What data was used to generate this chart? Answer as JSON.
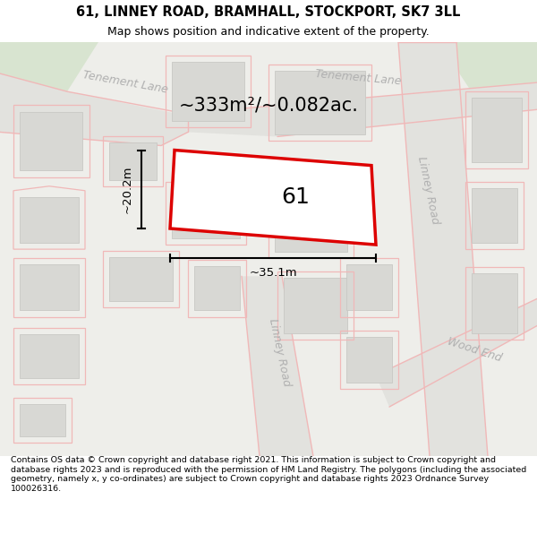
{
  "title_line1": "61, LINNEY ROAD, BRAMHALL, STOCKPORT, SK7 3LL",
  "title_line2": "Map shows position and indicative extent of the property.",
  "footer_text": "Contains OS data © Crown copyright and database right 2021. This information is subject to Crown copyright and database rights 2023 and is reproduced with the permission of HM Land Registry. The polygons (including the associated geometry, namely x, y co-ordinates) are subject to Crown copyright and database rights 2023 Ordnance Survey 100026316.",
  "map_bg": "#eeeeea",
  "road_bg": "#e2e2de",
  "road_color": "#f0b8b8",
  "highlight_color": "#dd0000",
  "building_fill": "#d8d8d4",
  "building_edge": "#c8c8c4",
  "green_fill": "#d8e4d0",
  "area_text": "~333m²/~0.082ac.",
  "width_text": "~35.1m",
  "height_text": "~20.2m",
  "plot_label": "61",
  "road_label_color": "#b0b0b0",
  "title_fontsize": 10.5,
  "subtitle_fontsize": 9,
  "footer_fontsize": 6.8
}
